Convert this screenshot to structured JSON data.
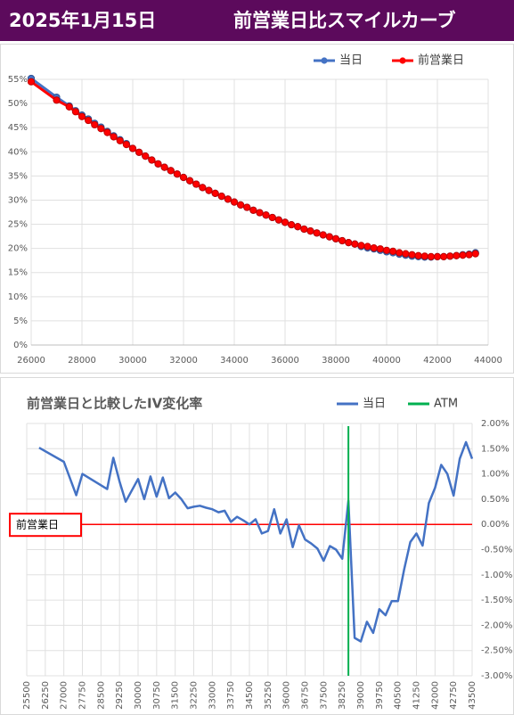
{
  "header": {
    "date": "2025年1月15日",
    "title": "前営業日比スマイルカーブ"
  },
  "chart_data": [
    {
      "type": "line",
      "markers": true,
      "grid": true,
      "x": [
        26000,
        27000,
        27500,
        27750,
        28000,
        28250,
        28500,
        28750,
        29000,
        29250,
        29500,
        29750,
        30000,
        30250,
        30500,
        30750,
        31000,
        31250,
        31500,
        31750,
        32000,
        32250,
        32500,
        32750,
        33000,
        33250,
        33500,
        33750,
        34000,
        34250,
        34500,
        34750,
        35000,
        35250,
        35500,
        35750,
        36000,
        36250,
        36500,
        36750,
        37000,
        37250,
        37500,
        37750,
        38000,
        38250,
        38500,
        38750,
        39000,
        39250,
        39500,
        39750,
        40000,
        40250,
        40500,
        40750,
        41000,
        41250,
        41500,
        41750,
        42000,
        42250,
        42500,
        42750,
        43000,
        43250,
        43500
      ],
      "series": [
        {
          "name": "当日",
          "color": "#4472c4",
          "values": [
            55.2,
            51.3,
            49.5,
            48.5,
            47.6,
            46.8,
            45.9,
            45.1,
            44.2,
            43.3,
            42.5,
            41.7,
            40.7,
            39.9,
            39.1,
            38.3,
            37.5,
            36.8,
            36.1,
            35.4,
            34.7,
            34.0,
            33.3,
            32.6,
            32.0,
            31.4,
            30.8,
            30.2,
            29.6,
            29.0,
            28.5,
            27.9,
            27.4,
            26.9,
            26.4,
            25.9,
            25.4,
            24.9,
            24.5,
            24.0,
            23.6,
            23.2,
            22.8,
            22.4,
            22.0,
            21.6,
            21.2,
            20.9,
            20.4,
            20.1,
            19.9,
            19.6,
            19.3,
            19.1,
            18.8,
            18.6,
            18.4,
            18.3,
            18.2,
            18.2,
            18.3,
            18.3,
            18.4,
            18.5,
            18.7,
            18.8,
            19.1
          ]
        },
        {
          "name": "前営業日",
          "color": "#ff0000",
          "values": [
            54.5,
            50.7,
            49.3,
            48.3,
            47.3,
            46.5,
            45.6,
            44.8,
            44.0,
            43.1,
            42.3,
            41.5,
            40.7,
            39.9,
            39.1,
            38.3,
            37.5,
            36.8,
            36.1,
            35.4,
            34.7,
            34.0,
            33.3,
            32.6,
            32.0,
            31.4,
            30.8,
            30.2,
            29.6,
            29.0,
            28.5,
            27.9,
            27.4,
            26.9,
            26.4,
            25.9,
            25.4,
            24.9,
            24.5,
            24.0,
            23.6,
            23.2,
            22.8,
            22.4,
            22.0,
            21.6,
            21.2,
            20.9,
            20.6,
            20.4,
            20.1,
            19.9,
            19.6,
            19.4,
            19.1,
            18.9,
            18.7,
            18.5,
            18.4,
            18.3,
            18.3,
            18.3,
            18.4,
            18.5,
            18.6,
            18.7,
            18.9
          ]
        }
      ],
      "xlim": [
        26000,
        44000
      ],
      "xticks": [
        26000,
        28000,
        30000,
        32000,
        34000,
        36000,
        38000,
        40000,
        42000,
        44000
      ],
      "ylim": [
        0,
        55
      ],
      "yticks": [
        {
          "value": 0,
          "label": "0%"
        },
        {
          "value": 5,
          "label": "5%"
        },
        {
          "value": 10,
          "label": "10%"
        },
        {
          "value": 15,
          "label": "15%"
        },
        {
          "value": 20,
          "label": "20%"
        },
        {
          "value": 25,
          "label": "25%"
        },
        {
          "value": 30,
          "label": "30%"
        },
        {
          "value": 35,
          "label": "35%"
        },
        {
          "value": 40,
          "label": "40%"
        },
        {
          "value": 45,
          "label": "45%"
        },
        {
          "value": 50,
          "label": "50%"
        },
        {
          "value": 55,
          "label": "55%"
        }
      ]
    },
    {
      "type": "line",
      "title": "前営業日と比較したIV変化率",
      "grid": true,
      "yaxis_side": "right",
      "x": [
        26000,
        27000,
        27500,
        27750,
        28750,
        29000,
        29250,
        29500,
        30000,
        30250,
        30500,
        30750,
        31000,
        31250,
        31500,
        31750,
        32000,
        32250,
        32500,
        32750,
        33000,
        33250,
        33500,
        33750,
        34000,
        34250,
        34500,
        34750,
        35000,
        35250,
        35500,
        35750,
        36000,
        36250,
        36500,
        36750,
        37000,
        37250,
        37500,
        37750,
        38000,
        38250,
        38500,
        38750,
        39000,
        39250,
        39500,
        39750,
        40000,
        40250,
        40500,
        40750,
        41000,
        41250,
        41500,
        41750,
        42000,
        42250,
        42500,
        42750,
        43000,
        43250,
        43500
      ],
      "series": [
        {
          "name": "当日",
          "color": "#4472c4",
          "values": [
            1.52,
            1.24,
            0.58,
            1.0,
            0.7,
            1.32,
            0.85,
            0.45,
            0.9,
            0.5,
            0.95,
            0.55,
            0.93,
            0.52,
            0.63,
            0.5,
            0.32,
            0.35,
            0.37,
            0.33,
            0.3,
            0.24,
            0.27,
            0.05,
            0.15,
            0.08,
            0.0,
            0.1,
            -0.18,
            -0.13,
            0.3,
            -0.18,
            0.1,
            -0.45,
            -0.02,
            -0.3,
            -0.38,
            -0.48,
            -0.72,
            -0.43,
            -0.5,
            -0.68,
            0.47,
            -2.25,
            -2.32,
            -1.93,
            -2.15,
            -1.68,
            -1.8,
            -1.52,
            -1.52,
            -0.9,
            -0.35,
            -0.18,
            -0.42,
            0.42,
            0.72,
            1.18,
            1.0,
            0.57,
            1.3,
            1.63,
            1.3
          ]
        }
      ],
      "atm": {
        "name": "ATM",
        "color": "#00b050",
        "x": 38500
      },
      "reference_line": {
        "value": 0,
        "label": "前営業日",
        "color": "#ff0000"
      },
      "xlim": [
        25500,
        43500
      ],
      "xticks": [
        25500,
        26250,
        27000,
        27750,
        28500,
        29250,
        30000,
        30750,
        31500,
        32250,
        33000,
        33750,
        34500,
        35250,
        36000,
        36750,
        37500,
        38250,
        39000,
        39750,
        40500,
        41250,
        42000,
        42750,
        43500
      ],
      "ylim": [
        -3,
        2
      ],
      "yticks": [
        {
          "value": 2,
          "label": "2.00%"
        },
        {
          "value": 1.5,
          "label": "1.50%"
        },
        {
          "value": 1,
          "label": "1.00%"
        },
        {
          "value": 0.5,
          "label": "0.50%"
        },
        {
          "value": 0,
          "label": "0.00%"
        },
        {
          "value": -0.5,
          "label": "-0.50%"
        },
        {
          "value": -1,
          "label": "-1.00%"
        },
        {
          "value": -1.5,
          "label": "-1.50%"
        },
        {
          "value": -2,
          "label": "-2.00%"
        },
        {
          "value": -2.5,
          "label": "-2.50%"
        },
        {
          "value": -3,
          "label": "-3.00%"
        }
      ]
    }
  ]
}
